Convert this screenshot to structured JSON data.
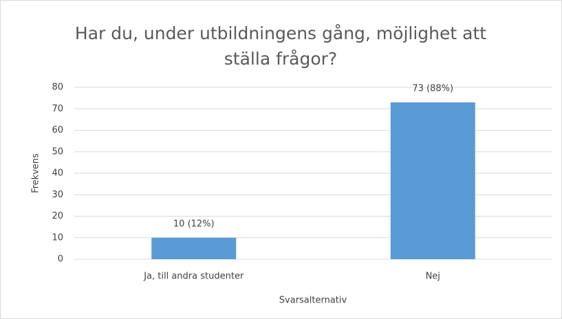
{
  "chart_data": {
    "type": "bar",
    "title": "Har du, under utbildningens gång, möjlighet att ställa frågor?",
    "x_label": "Svarsalternativ",
    "y_label": "Frekvens",
    "categories": [
      "Ja, till andra studenter",
      "Nej"
    ],
    "values": [
      10,
      73
    ],
    "value_labels": [
      "10 (12%)",
      "73 (88%)"
    ],
    "color": "#5b9bd5",
    "ylim": [
      0,
      80
    ],
    "yticks": [
      0,
      10,
      20,
      30,
      40,
      50,
      60,
      70,
      80
    ],
    "grid": true
  }
}
